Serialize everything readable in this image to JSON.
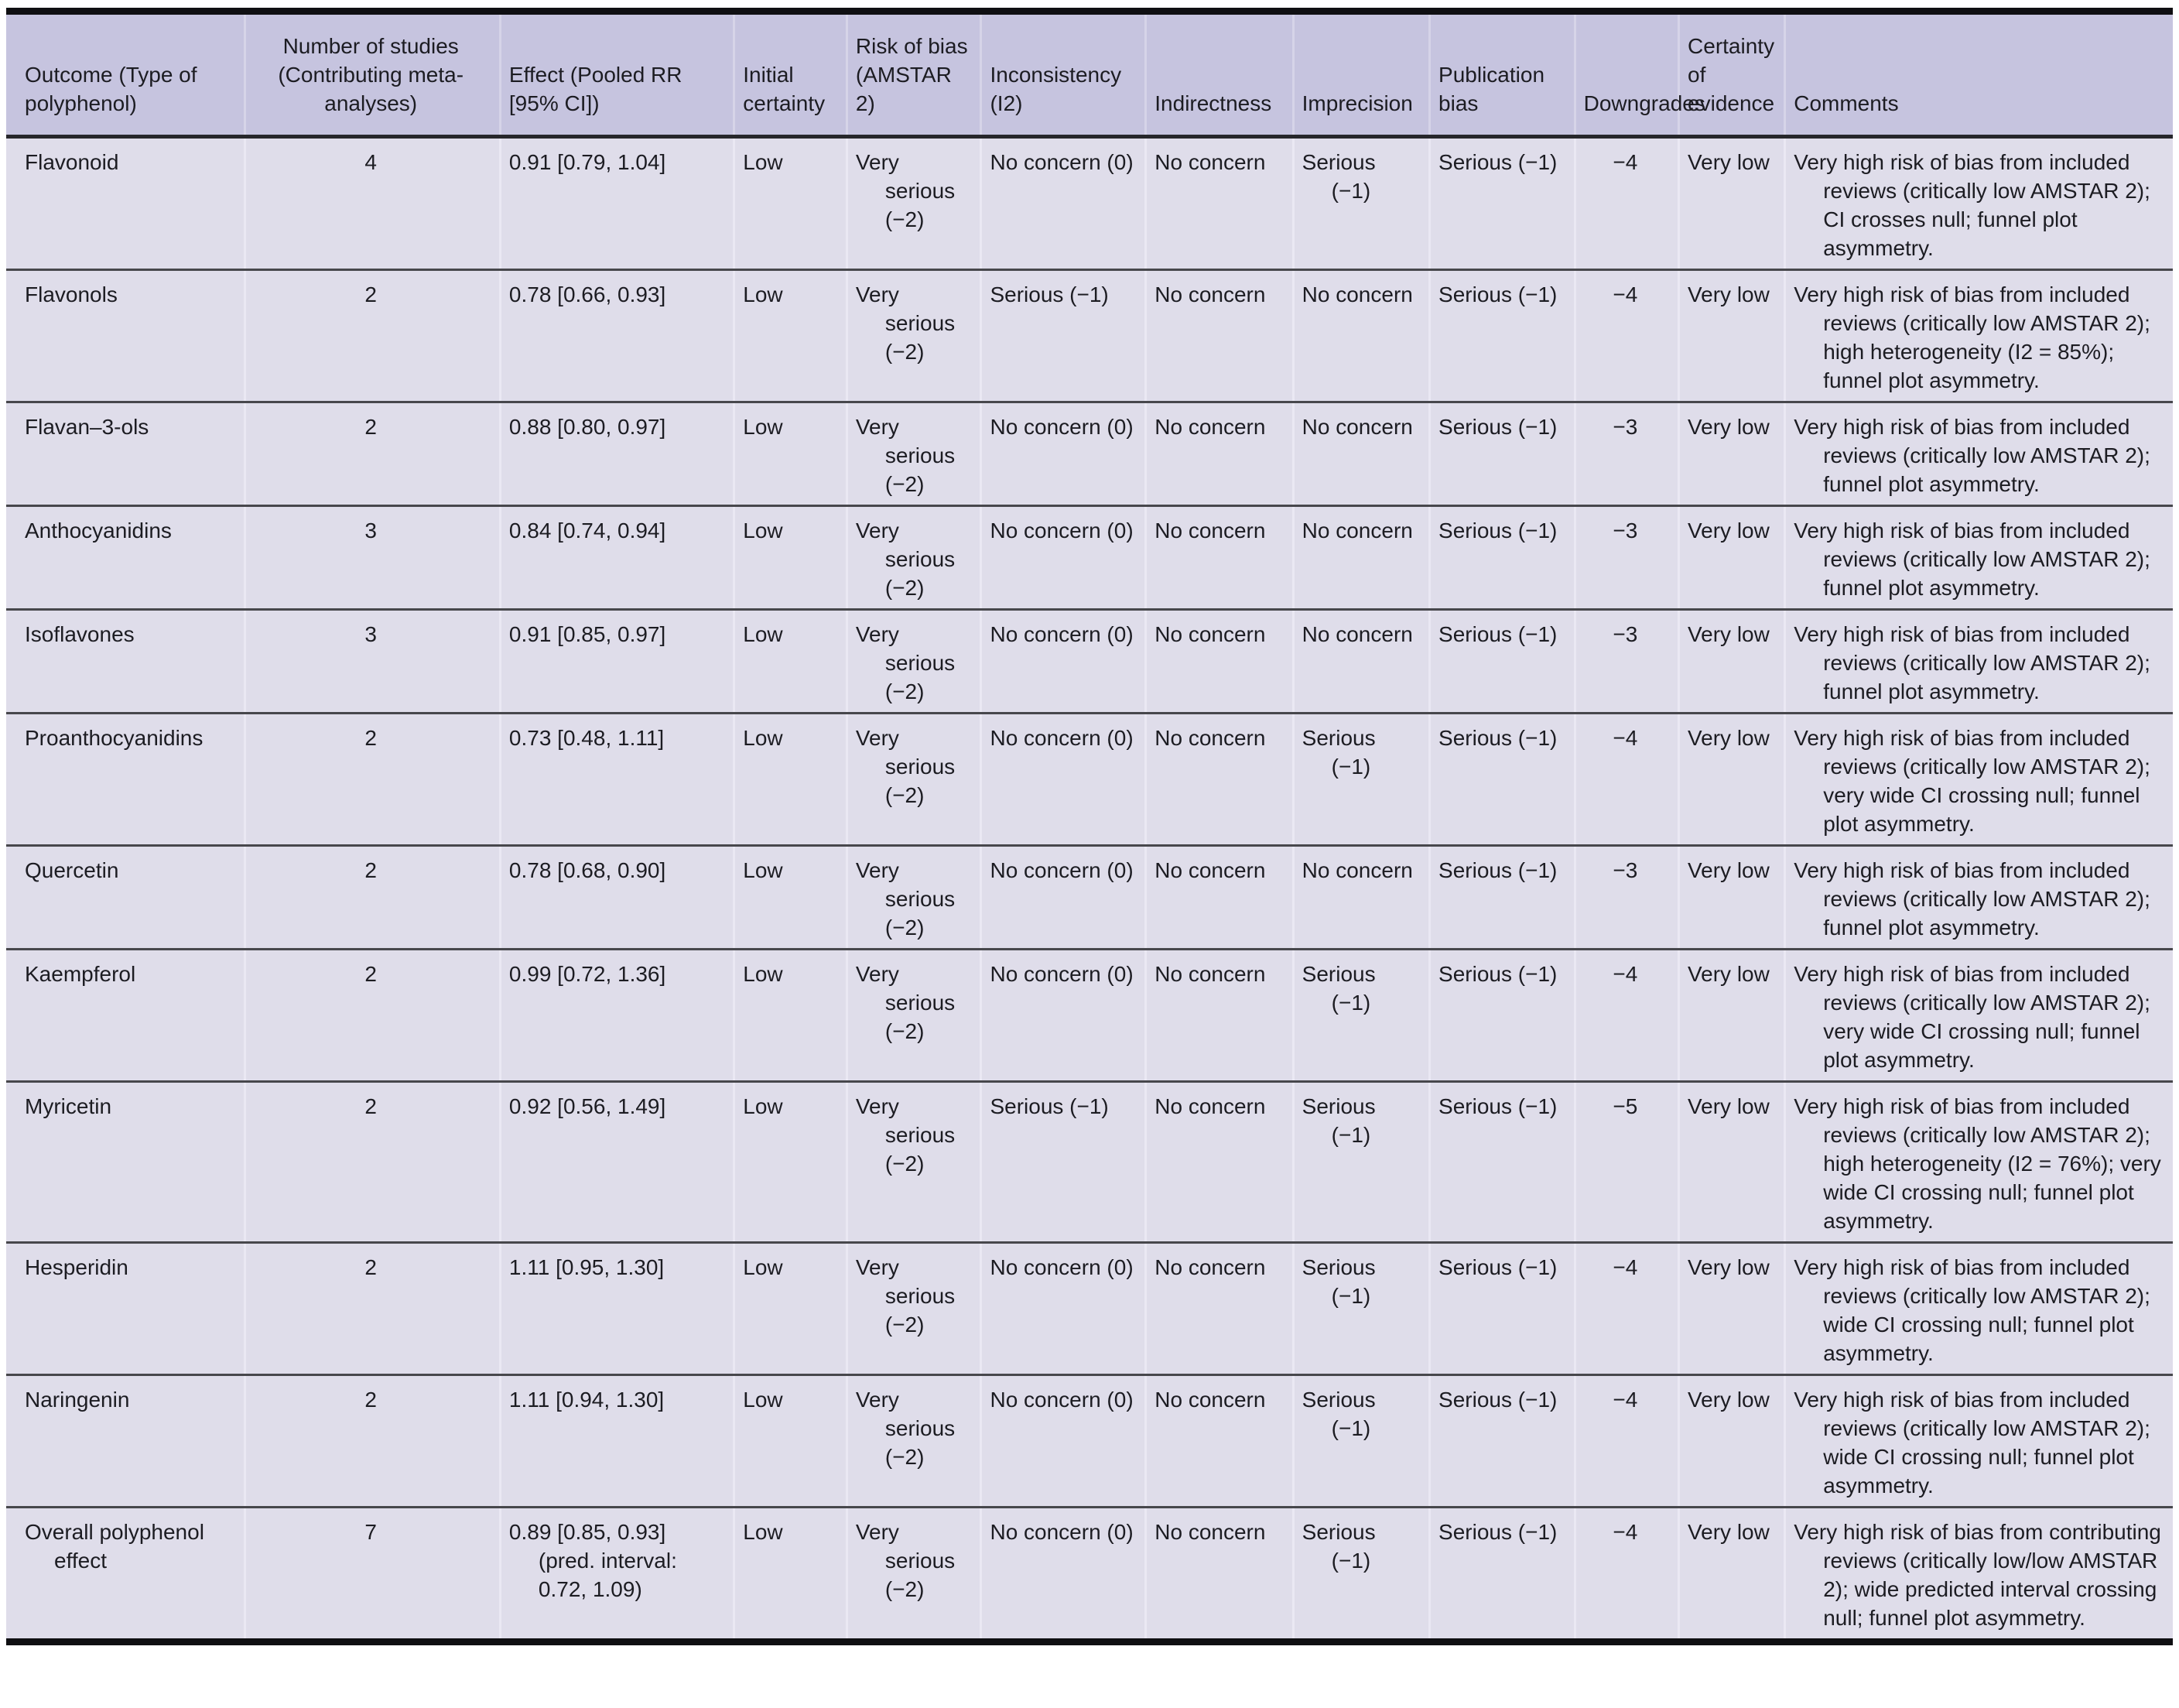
{
  "colors": {
    "header_bg": "#c6c4df",
    "body_bg": "#dfddea",
    "header_sep": "#d6d4e8",
    "body_sep": "#eae8f3",
    "row_line": "#47474c",
    "header_line": "#26262b",
    "heavy_line": "#0f0f12",
    "text": "#1c1c22"
  },
  "table": {
    "columns": [
      {
        "key": "outcome",
        "label": "Outcome (Type of polyphenol)",
        "align": "left"
      },
      {
        "key": "studies",
        "label": "Number of studies (Contributing meta-analyses)",
        "align": "center"
      },
      {
        "key": "effect",
        "label": "Effect (Pooled RR [95% CI])",
        "align": "left"
      },
      {
        "key": "initial",
        "label": "Initial certainty",
        "align": "left"
      },
      {
        "key": "rob",
        "label": "Risk of bias (AMSTAR 2)",
        "align": "left"
      },
      {
        "key": "inconsistency",
        "label": "Inconsistency (I2)",
        "align": "left"
      },
      {
        "key": "indirectness",
        "label": "Indirectness",
        "align": "left"
      },
      {
        "key": "imprecision",
        "label": "Imprecision",
        "align": "left"
      },
      {
        "key": "pubbias",
        "label": "Publication bias",
        "align": "left"
      },
      {
        "key": "downgrades",
        "label": "Downgrades",
        "align": "center"
      },
      {
        "key": "certainty",
        "label": "Certainty of evidence",
        "align": "left"
      },
      {
        "key": "comments",
        "label": "Comments",
        "align": "left"
      }
    ],
    "rows": [
      {
        "outcome": "Flavonoid",
        "studies": "4",
        "effect": "0.91 [0.79, 1.04]",
        "initial": "Low",
        "rob": "Very serious (−2)",
        "inconsistency": "No concern (0)",
        "indirectness": "No concern",
        "imprecision": "Serious (−1)",
        "pubbias": "Serious (−1)",
        "downgrades": "−4",
        "certainty": "Very low",
        "comments": "Very high risk of bias from included reviews (critically low AMSTAR 2); CI crosses null; funnel plot asymmetry."
      },
      {
        "outcome": "Flavonols",
        "studies": "2",
        "effect": "0.78 [0.66, 0.93]",
        "initial": "Low",
        "rob": "Very serious (−2)",
        "inconsistency": "Serious (−1)",
        "indirectness": "No concern",
        "imprecision": "No concern",
        "pubbias": "Serious (−1)",
        "downgrades": "−4",
        "certainty": "Very low",
        "comments": "Very high risk of bias from included reviews (critically low AMSTAR 2); high heterogeneity (I2 = 85%); funnel plot asymmetry."
      },
      {
        "outcome": "Flavan–3-ols",
        "studies": "2",
        "effect": "0.88 [0.80, 0.97]",
        "initial": "Low",
        "rob": "Very serious (−2)",
        "inconsistency": "No concern (0)",
        "indirectness": "No concern",
        "imprecision": "No concern",
        "pubbias": "Serious (−1)",
        "downgrades": "−3",
        "certainty": "Very low",
        "comments": "Very high risk of bias from included reviews (critically low AMSTAR 2); funnel plot asymmetry."
      },
      {
        "outcome": "Anthocyanidins",
        "studies": "3",
        "effect": "0.84 [0.74, 0.94]",
        "initial": "Low",
        "rob": "Very serious (−2)",
        "inconsistency": "No concern (0)",
        "indirectness": "No concern",
        "imprecision": "No concern",
        "pubbias": "Serious (−1)",
        "downgrades": "−3",
        "certainty": "Very low",
        "comments": "Very high risk of bias from included reviews (critically low AMSTAR 2); funnel plot asymmetry."
      },
      {
        "outcome": "Isoflavones",
        "studies": "3",
        "effect": "0.91 [0.85, 0.97]",
        "initial": "Low",
        "rob": "Very serious (−2)",
        "inconsistency": "No concern (0)",
        "indirectness": "No concern",
        "imprecision": "No concern",
        "pubbias": "Serious (−1)",
        "downgrades": "−3",
        "certainty": "Very low",
        "comments": "Very high risk of bias from included reviews (critically low AMSTAR 2); funnel plot asymmetry."
      },
      {
        "outcome": "Proanthocyanidins",
        "studies": "2",
        "effect": "0.73 [0.48, 1.11]",
        "initial": "Low",
        "rob": "Very serious (−2)",
        "inconsistency": "No concern (0)",
        "indirectness": "No concern",
        "imprecision": "Serious (−1)",
        "pubbias": "Serious (−1)",
        "downgrades": "−4",
        "certainty": "Very low",
        "comments": "Very high risk of bias from included reviews (critically low AMSTAR 2); very wide CI crossing null; funnel plot asymmetry."
      },
      {
        "outcome": "Quercetin",
        "studies": "2",
        "effect": "0.78 [0.68, 0.90]",
        "initial": "Low",
        "rob": "Very serious (−2)",
        "inconsistency": "No concern (0)",
        "indirectness": "No concern",
        "imprecision": "No concern",
        "pubbias": "Serious (−1)",
        "downgrades": "−3",
        "certainty": "Very low",
        "comments": "Very high risk of bias from included reviews (critically low AMSTAR 2); funnel plot asymmetry."
      },
      {
        "outcome": "Kaempferol",
        "studies": "2",
        "effect": "0.99 [0.72, 1.36]",
        "initial": "Low",
        "rob": "Very serious (−2)",
        "inconsistency": "No concern (0)",
        "indirectness": "No concern",
        "imprecision": "Serious (−1)",
        "pubbias": "Serious (−1)",
        "downgrades": "−4",
        "certainty": "Very low",
        "comments": "Very high risk of bias from included reviews (critically low AMSTAR 2); very wide CI crossing null; funnel plot asymmetry."
      },
      {
        "outcome": "Myricetin",
        "studies": "2",
        "effect": "0.92 [0.56, 1.49]",
        "initial": "Low",
        "rob": "Very serious (−2)",
        "inconsistency": "Serious (−1)",
        "indirectness": "No concern",
        "imprecision": "Serious (−1)",
        "pubbias": "Serious (−1)",
        "downgrades": "−5",
        "certainty": "Very low",
        "comments": "Very high risk of bias from included reviews (critically low AMSTAR 2); high heterogeneity (I2 = 76%); very wide CI crossing null; funnel plot asymmetry."
      },
      {
        "outcome": "Hesperidin",
        "studies": "2",
        "effect": "1.11 [0.95, 1.30]",
        "initial": "Low",
        "rob": "Very serious (−2)",
        "inconsistency": "No concern (0)",
        "indirectness": "No concern",
        "imprecision": "Serious (−1)",
        "pubbias": "Serious (−1)",
        "downgrades": "−4",
        "certainty": "Very low",
        "comments": "Very high risk of bias from included reviews (critically low AMSTAR 2); wide CI crossing null; funnel plot asymmetry."
      },
      {
        "outcome": "Naringenin",
        "studies": "2",
        "effect": "1.11 [0.94, 1.30]",
        "initial": "Low",
        "rob": "Very serious (−2)",
        "inconsistency": "No concern (0)",
        "indirectness": "No concern",
        "imprecision": "Serious (−1)",
        "pubbias": "Serious (−1)",
        "downgrades": "−4",
        "certainty": "Very low",
        "comments": "Very high risk of bias from included reviews (critically low AMSTAR 2); wide CI crossing null; funnel plot asymmetry."
      },
      {
        "outcome": "Overall polyphenol effect",
        "studies": "7",
        "effect": "0.89 [0.85, 0.93] (pred. interval: 0.72, 1.09)",
        "initial": "Low",
        "rob": "Very serious (−2)",
        "inconsistency": "No concern (0)",
        "indirectness": "No concern",
        "imprecision": "Serious (−1)",
        "pubbias": "Serious (−1)",
        "downgrades": "−4",
        "certainty": "Very low",
        "comments": "Very high risk of bias from contributing reviews (critically low/low AMSTAR 2); wide predicted interval crossing null; funnel plot asymmetry."
      }
    ]
  }
}
